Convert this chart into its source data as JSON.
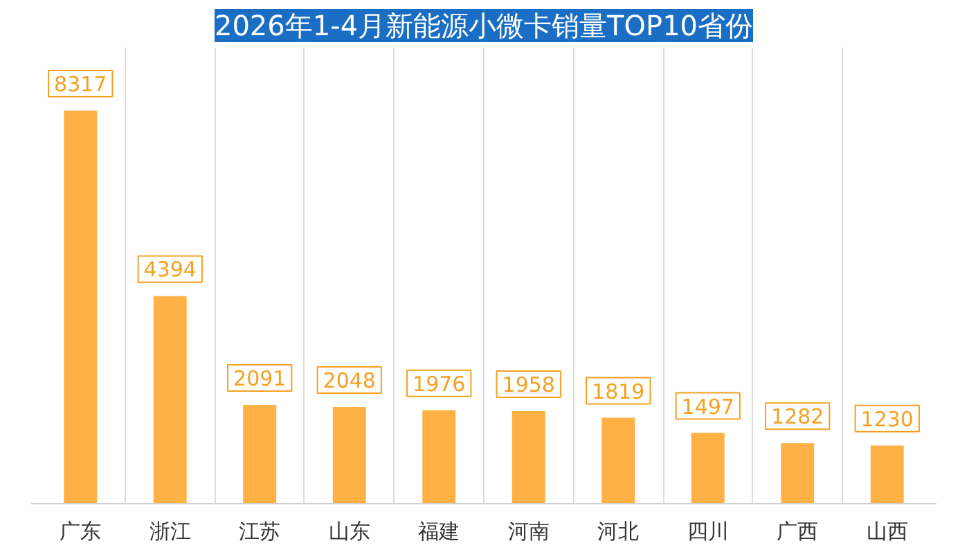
{
  "chart_data": {
    "type": "bar",
    "title": "2026年1-4月新能源小微卡销量TOP10省份",
    "categories": [
      "广东",
      "浙江",
      "江苏",
      "山东",
      "福建",
      "河南",
      "河北",
      "四川",
      "广西",
      "山西"
    ],
    "values": [
      8317,
      4394,
      2091,
      2048,
      1976,
      1958,
      1819,
      1497,
      1282,
      1230
    ],
    "color": "#ffb146",
    "data_labels": true,
    "grid": "x"
  }
}
